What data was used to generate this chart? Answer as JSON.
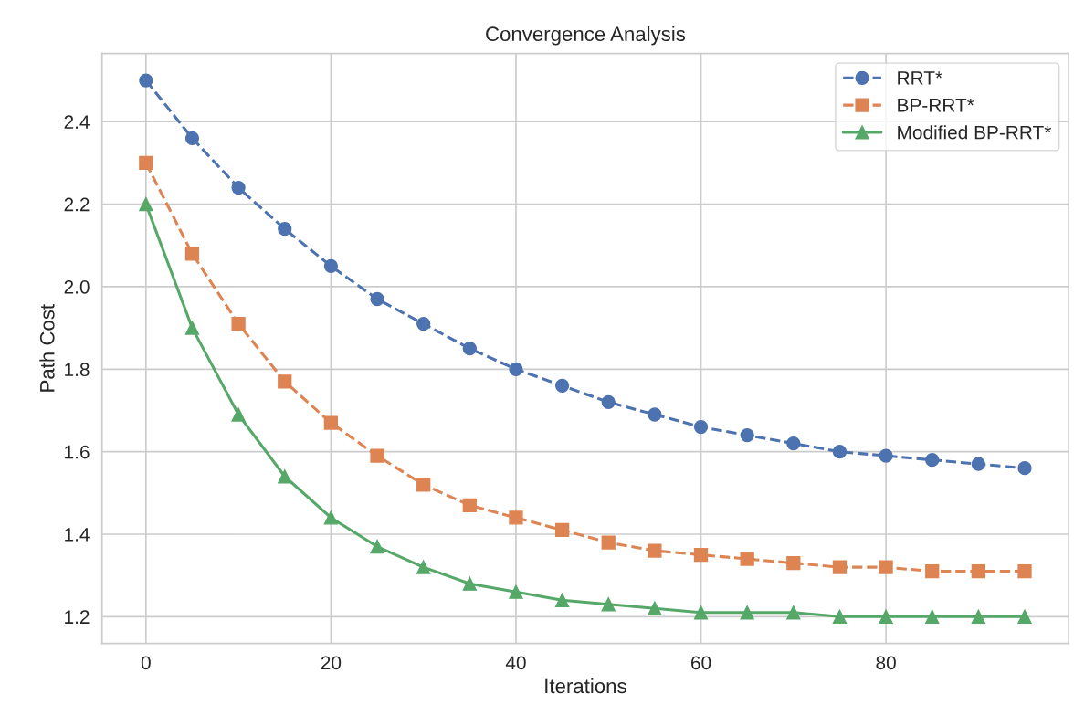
{
  "chart_data": {
    "type": "line",
    "title": "Convergence Analysis",
    "xlabel": "Iterations",
    "ylabel": "Path Cost",
    "x": [
      0,
      5,
      10,
      15,
      20,
      25,
      30,
      35,
      40,
      45,
      50,
      55,
      60,
      65,
      70,
      75,
      80,
      85,
      90,
      95
    ],
    "xlim": [
      -4.75,
      99.75
    ],
    "xticks": [
      0,
      20,
      40,
      60,
      80
    ],
    "ylim": [
      1.135,
      2.565
    ],
    "yticks": [
      1.2,
      1.4,
      1.6,
      1.8,
      {
        "value": 2,
        "label": "2.0"
      },
      2.2,
      2.4
    ],
    "grid": true,
    "legend": "top right",
    "series": [
      {
        "name": "RRT*",
        "color": "#4c72b0",
        "marker": "circle",
        "line_style": "dashed",
        "values": [
          2.5,
          2.36,
          2.24,
          2.14,
          2.05,
          1.97,
          1.91,
          1.85,
          1.8,
          1.76,
          1.72,
          1.69,
          1.66,
          1.64,
          1.62,
          1.6,
          1.59,
          1.58,
          1.57,
          1.56
        ]
      },
      {
        "name": "BP-RRT*",
        "color": "#dd8452",
        "marker": "square",
        "line_style": "dashed",
        "values": [
          2.3,
          2.08,
          1.91,
          1.77,
          1.67,
          1.59,
          1.52,
          1.47,
          1.44,
          1.41,
          1.38,
          1.36,
          1.35,
          1.34,
          1.33,
          1.32,
          1.32,
          1.31,
          1.31,
          1.31
        ]
      },
      {
        "name": "Modified BP-RRT*",
        "color": "#55a868",
        "marker": "triangle",
        "line_style": "solid",
        "values": [
          2.2,
          1.9,
          1.69,
          1.54,
          1.44,
          1.37,
          1.32,
          1.28,
          1.26,
          1.24,
          1.23,
          1.22,
          1.21,
          1.21,
          1.21,
          1.2,
          1.2,
          1.2,
          1.2,
          1.2
        ]
      }
    ]
  }
}
